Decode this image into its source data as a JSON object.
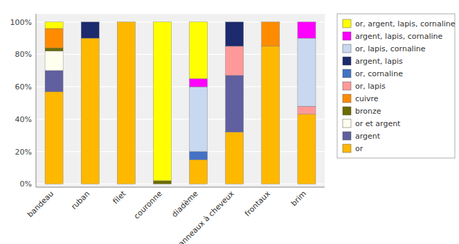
{
  "chart_data": {
    "type": "bar",
    "stacked": true,
    "grid": true,
    "legend": "right",
    "categories": [
      "bandeau",
      "ruban",
      "filet",
      "couronne",
      "diadème",
      "anneaux à cheveux",
      "frontaux",
      "brim"
    ],
    "ylim": [
      -2,
      105
    ],
    "yticks": [
      {
        "value": 0,
        "label": "0%"
      },
      {
        "value": 20,
        "label": "20%"
      },
      {
        "value": 40,
        "label": "40%"
      },
      {
        "value": 60,
        "label": "60%"
      },
      {
        "value": 80,
        "label": "80%"
      },
      {
        "value": 100,
        "label": "100%"
      }
    ],
    "series": [
      {
        "name": "or",
        "color": "#FFB800",
        "values": [
          57,
          90,
          100,
          0,
          15,
          32,
          85,
          43
        ]
      },
      {
        "name": "argent",
        "color": "#6060A0",
        "values": [
          13,
          0,
          0,
          0,
          0,
          35,
          0,
          0
        ]
      },
      {
        "name": "or et argent",
        "color": "#FFFFF0",
        "values": [
          12,
          0,
          0,
          0,
          0,
          0,
          0,
          0
        ]
      },
      {
        "name": "bronze",
        "color": "#6B6B00",
        "values": [
          2,
          0,
          0,
          2,
          0,
          0,
          0,
          0
        ]
      },
      {
        "name": "cuivre",
        "color": "#FF8C00",
        "values": [
          12,
          0,
          0,
          0,
          0,
          0,
          15,
          0
        ]
      },
      {
        "name": "or, lapis",
        "color": "#FF9999",
        "values": [
          0,
          0,
          0,
          0,
          0,
          18,
          0,
          5
        ]
      },
      {
        "name": "or, cornaline",
        "color": "#4472C4",
        "values": [
          0,
          0,
          0,
          0,
          5,
          0,
          0,
          0
        ]
      },
      {
        "name": "argent, lapis",
        "color": "#1C2A6E",
        "values": [
          0,
          10,
          0,
          0,
          0,
          15,
          0,
          0
        ]
      },
      {
        "name": "or, lapis, cornaline",
        "color": "#C8D8F0",
        "values": [
          0,
          0,
          0,
          0,
          40,
          0,
          0,
          42
        ]
      },
      {
        "name": "argent, lapis, cornaline",
        "color": "#FF00FF",
        "values": [
          0,
          0,
          0,
          0,
          5,
          0,
          0,
          10
        ]
      },
      {
        "name": "or, argent, lapis, cornaline",
        "color": "#FFFF00",
        "values": [
          4,
          0,
          0,
          98,
          35,
          0,
          0,
          0
        ]
      }
    ]
  }
}
